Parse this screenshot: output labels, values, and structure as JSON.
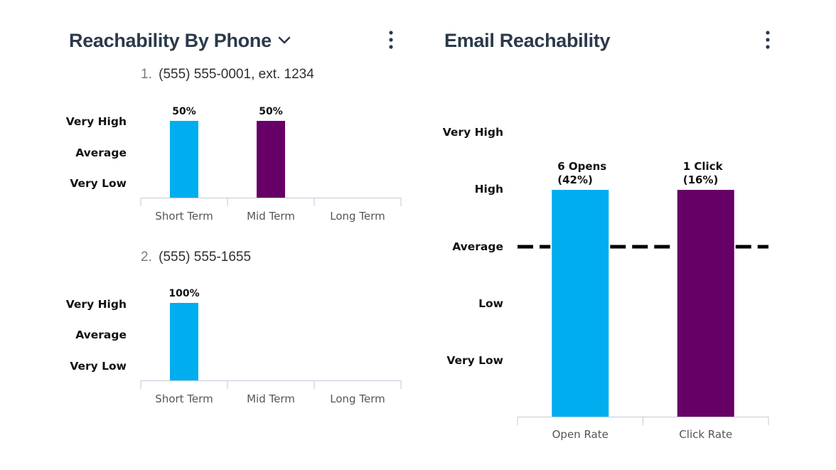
{
  "phone_panel": {
    "title": "Reachability By Phone",
    "dropdown_icon": "chevron-down-icon",
    "menu_icon": "more-vertical-icon",
    "entries": [
      {
        "index": "1.",
        "phone": "(555) 555-0001, ext. 1234"
      },
      {
        "index": "2.",
        "phone": "(555) 555-1655"
      }
    ]
  },
  "email_panel": {
    "title": "Email Reachability",
    "menu_icon": "more-vertical-icon"
  },
  "colors": {
    "blue": "#00ADEE",
    "purple": "#660066",
    "axis": "#c9d2dc",
    "title": "#2b3a4a"
  },
  "chart_data": [
    {
      "type": "bar",
      "title": "",
      "categories": [
        "Short Term",
        "Mid Term",
        "Long Term"
      ],
      "y_levels": [
        "Very Low",
        "Average",
        "Very High"
      ],
      "bars": [
        {
          "category": "Short Term",
          "value": 1.0,
          "label": "50%",
          "color": "#00ADEE"
        },
        {
          "category": "Mid Term",
          "value": 1.0,
          "label": "50%",
          "color": "#660066"
        }
      ],
      "ylim": [
        0,
        1
      ],
      "grid": false
    },
    {
      "type": "bar",
      "title": "",
      "categories": [
        "Short Term",
        "Mid Term",
        "Long Term"
      ],
      "y_levels": [
        "Very Low",
        "Average",
        "Very High"
      ],
      "bars": [
        {
          "category": "Short Term",
          "value": 1.0,
          "label": "100%",
          "color": "#00ADEE"
        }
      ],
      "ylim": [
        0,
        1
      ],
      "grid": false
    },
    {
      "type": "bar",
      "title": "",
      "categories": [
        "Open Rate",
        "Click Rate"
      ],
      "y_levels": [
        "Very Low",
        "Low",
        "Average",
        "High",
        "Very High"
      ],
      "bars": [
        {
          "category": "Open Rate",
          "value": 4,
          "label_lines": [
            "6 Opens",
            "(42%)"
          ],
          "color": "#00ADEE"
        },
        {
          "category": "Click Rate",
          "value": 4,
          "label_lines": [
            "1 Click",
            "(16%)"
          ],
          "color": "#660066"
        }
      ],
      "reference_line": {
        "value": 3,
        "style": "dashed"
      },
      "ylim": [
        0,
        5
      ],
      "grid": false
    }
  ]
}
